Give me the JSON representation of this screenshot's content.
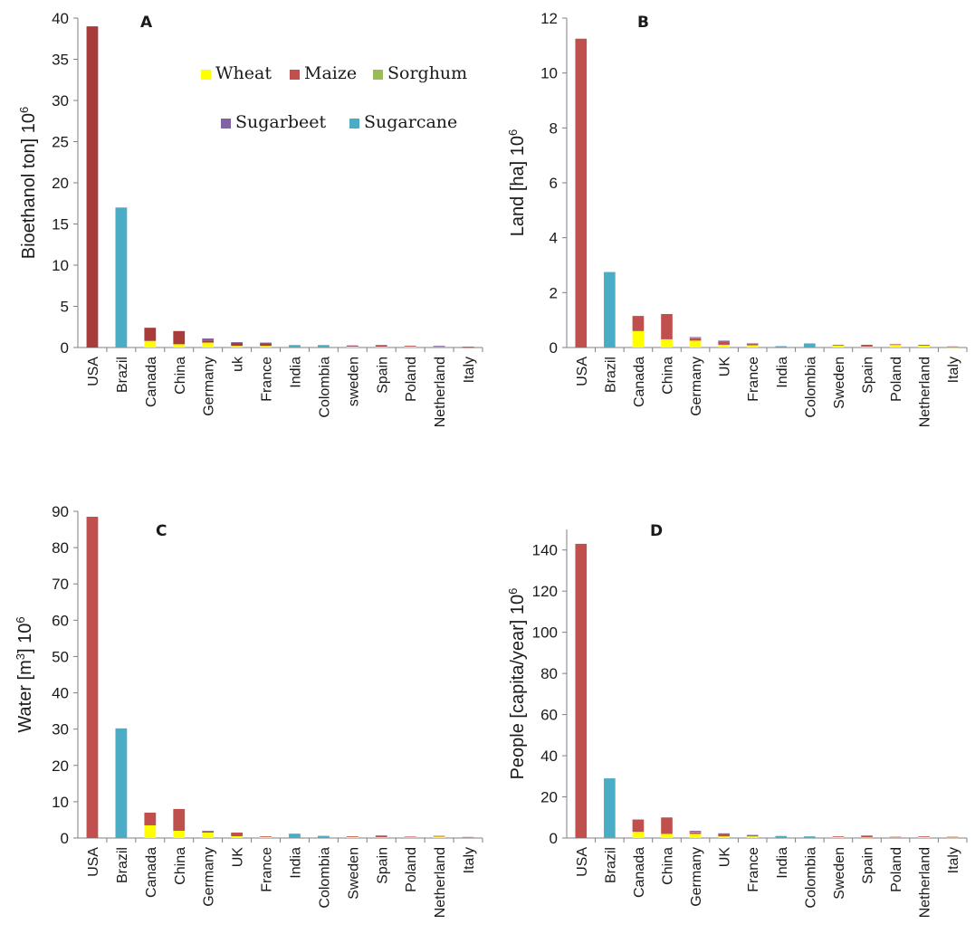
{
  "chart_data": [
    {
      "type": "bar",
      "stacked": true,
      "title": "A",
      "ylabel": "Bioethanol ton] 10",
      "ylabel_sup": "6",
      "ylim": [
        0,
        40
      ],
      "yticks": [
        0,
        5,
        10,
        15,
        20,
        25,
        30,
        35,
        40
      ],
      "categories": [
        "USA",
        "Brazil",
        "Canada",
        "China",
        "Germany",
        "uk",
        "France",
        "India",
        "Colombia",
        "sweden",
        "Spain",
        "Poland",
        "Netherland",
        "Italy"
      ],
      "legend": {
        "placement": "top-right",
        "entries": [
          {
            "name": "Wheat",
            "color": "#ffff00"
          },
          {
            "name": "Maize",
            "color": "#c0504d"
          },
          {
            "name": "Sorghum",
            "color": "#9bbb59"
          },
          {
            "name": "Sugarbeet",
            "color": "#8064a2"
          },
          {
            "name": "Sugarcane",
            "color": "#4bacc6"
          }
        ]
      },
      "series": [
        {
          "key": "wheat",
          "color": "#ffff00",
          "values": [
            0,
            0,
            0.8,
            0.4,
            0.6,
            0.2,
            0.2,
            0,
            0,
            0.15,
            0.1,
            0.15,
            0.1,
            0
          ]
        },
        {
          "key": "maize",
          "color": "#a83c3a",
          "values": [
            39,
            0,
            1.6,
            1.6,
            0.25,
            0.35,
            0.3,
            0,
            0,
            0.05,
            0.15,
            0.05,
            0.05,
            0.05
          ]
        },
        {
          "key": "sorghum",
          "color": "#9bbb59",
          "values": [
            0,
            0,
            0,
            0,
            0,
            0,
            0,
            0,
            0,
            0,
            0,
            0,
            0,
            0
          ]
        },
        {
          "key": "sugarbeet",
          "color": "#8064a2",
          "values": [
            0,
            0,
            0,
            0,
            0.25,
            0.1,
            0.1,
            0,
            0,
            0.05,
            0.05,
            0,
            0.05,
            0.05
          ]
        },
        {
          "key": "sugarcane",
          "color": "#4bacc6",
          "values": [
            0,
            17,
            0,
            0,
            0,
            0,
            0,
            0.3,
            0.3,
            0,
            0,
            0,
            0,
            0
          ]
        }
      ]
    },
    {
      "type": "bar",
      "stacked": true,
      "title": "B",
      "ylabel": "Land [ha] 10",
      "ylabel_sup": "6",
      "ylim": [
        0,
        12
      ],
      "yticks": [
        0,
        2,
        4,
        6,
        8,
        10,
        12
      ],
      "categories": [
        "USA",
        "Brazil",
        "Canada",
        "China",
        "Germany",
        "UK",
        "France",
        "India",
        "Colombia",
        "Sweden",
        "Spain",
        "Poland",
        "Netherland",
        "Italy"
      ],
      "series": [
        {
          "key": "wheat",
          "color": "#ffff00",
          "values": [
            0,
            0,
            0.6,
            0.3,
            0.25,
            0.1,
            0.08,
            0,
            0,
            0.08,
            0.03,
            0.1,
            0.07,
            0.02
          ]
        },
        {
          "key": "maize",
          "color": "#c0504d",
          "values": [
            11.25,
            0,
            0.55,
            0.92,
            0.08,
            0.1,
            0.05,
            0,
            0,
            0.02,
            0.07,
            0.02,
            0.03,
            0.02
          ]
        },
        {
          "key": "sorghum",
          "color": "#9bbb59",
          "values": [
            0,
            0,
            0,
            0,
            0.03,
            0,
            0,
            0,
            0,
            0,
            0,
            0,
            0,
            0
          ]
        },
        {
          "key": "sugarbeet",
          "color": "#8064a2",
          "values": [
            0,
            0,
            0,
            0,
            0.02,
            0.05,
            0.02,
            0,
            0,
            0,
            0,
            0,
            0,
            0
          ]
        },
        {
          "key": "sugarcane",
          "color": "#4bacc6",
          "values": [
            0,
            2.75,
            0,
            0,
            0,
            0,
            0,
            0.05,
            0.15,
            0,
            0,
            0,
            0,
            0
          ]
        }
      ]
    },
    {
      "type": "bar",
      "stacked": true,
      "title": "C",
      "ylabel": "Water [m",
      "ylabel_sup1": "3",
      "ylabel_mid": "] 10",
      "ylabel_sup": "6",
      "ylim": [
        0,
        90
      ],
      "yticks": [
        0,
        10,
        20,
        30,
        40,
        50,
        60,
        70,
        80,
        90
      ],
      "categories": [
        "USA",
        "Brazil",
        "Canada",
        "China",
        "Germany",
        "UK",
        "France",
        "India",
        "Colombia",
        "Sweden",
        "Spain",
        "Poland",
        "Netherland",
        "Italy"
      ],
      "series": [
        {
          "key": "wheat",
          "color": "#ffff00",
          "values": [
            0,
            0,
            3.5,
            2,
            1.5,
            0.5,
            0.3,
            0,
            0,
            0.3,
            0.2,
            0.3,
            0.4,
            0.2
          ]
        },
        {
          "key": "maize",
          "color": "#c0504d",
          "values": [
            88.5,
            0,
            3.5,
            6,
            0.3,
            1,
            0.2,
            0,
            0,
            0.2,
            0.5,
            0.1,
            0.2,
            0.1
          ]
        },
        {
          "key": "sorghum",
          "color": "#9bbb59",
          "values": [
            0,
            0,
            0,
            0,
            0,
            0,
            0,
            0,
            0,
            0,
            0,
            0,
            0,
            0
          ]
        },
        {
          "key": "sugarbeet",
          "color": "#8064a2",
          "values": [
            0,
            0,
            0,
            0,
            0.2,
            0,
            0,
            0,
            0,
            0,
            0,
            0,
            0,
            0
          ]
        },
        {
          "key": "sugarcane",
          "color": "#4bacc6",
          "values": [
            0,
            30.2,
            0,
            0,
            0,
            0,
            0,
            1.2,
            0.6,
            0,
            0,
            0,
            0,
            0
          ]
        }
      ]
    },
    {
      "type": "bar",
      "stacked": true,
      "title": "D",
      "ylabel": "People [capita/year]  10",
      "ylabel_sup": "6",
      "ylim": [
        0,
        150
      ],
      "yticks": [
        0,
        20,
        40,
        60,
        80,
        100,
        120,
        140
      ],
      "categories": [
        "USA",
        "Brazil",
        "Canada",
        "China",
        "Germany",
        "UK",
        "France",
        "India",
        "Colombia",
        "Sweden",
        "Spain",
        "Poland",
        "Netherland",
        "Italy"
      ],
      "series": [
        {
          "key": "wheat",
          "color": "#ffff00",
          "values": [
            0,
            0,
            3,
            2,
            2,
            0.8,
            0.8,
            0,
            0,
            0.5,
            0.3,
            0.5,
            0.5,
            0.3
          ]
        },
        {
          "key": "maize",
          "color": "#c0504d",
          "values": [
            143,
            0,
            6,
            8,
            0.8,
            1,
            0.4,
            0,
            0,
            0.3,
            0.9,
            0.1,
            0.3,
            0.3
          ]
        },
        {
          "key": "sorghum",
          "color": "#9bbb59",
          "values": [
            0,
            0,
            0,
            0,
            0.2,
            0,
            0,
            0,
            0,
            0,
            0,
            0,
            0,
            0
          ]
        },
        {
          "key": "sugarbeet",
          "color": "#8064a2",
          "values": [
            0,
            0,
            0,
            0,
            0.5,
            0.5,
            0.3,
            0,
            0,
            0,
            0,
            0,
            0,
            0
          ]
        },
        {
          "key": "sugarcane",
          "color": "#4bacc6",
          "values": [
            0,
            29,
            0,
            0,
            0,
            0,
            0,
            1,
            0.8,
            0,
            0,
            0,
            0,
            0
          ]
        }
      ]
    }
  ]
}
